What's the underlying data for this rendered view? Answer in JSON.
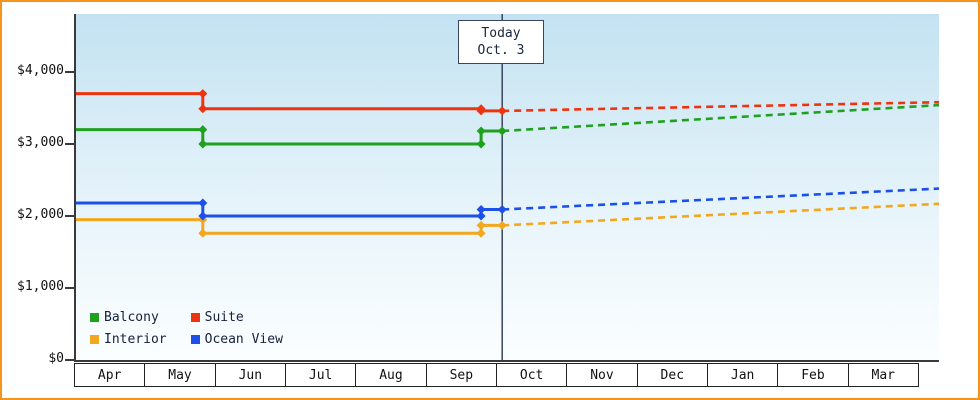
{
  "colors": {
    "page_border": "#f7941d",
    "axis": "#3a3a3a",
    "today_line": "#39455e",
    "plot_bg_top": "#c3e2f1",
    "plot_bg_bottom": "#fbfeff"
  },
  "chart_data": {
    "type": "line",
    "title": "",
    "xlabel": "",
    "ylabel": "",
    "ylim": [
      0,
      4800
    ],
    "grid": false,
    "legend_position": "bottom-left",
    "x_axis": {
      "months": [
        "Apr",
        "May",
        "Jun",
        "Jul",
        "Aug",
        "Sep",
        "Oct",
        "Nov",
        "Dec",
        "Jan",
        "Feb",
        "Mar"
      ]
    },
    "y_axis": {
      "ticks": [
        {
          "value": 4000,
          "label": "$4,000"
        },
        {
          "value": 3000,
          "label": "$3,000"
        },
        {
          "value": 2000,
          "label": "$2,000"
        },
        {
          "value": 1000,
          "label": "$1,000"
        },
        {
          "value": 0,
          "label": "$0"
        }
      ]
    },
    "today": {
      "line1": "Today",
      "line2": "Oct. 3",
      "x": 6.05
    },
    "series": [
      {
        "name": "Balcony",
        "color": "#1fa11f",
        "historical": [
          [
            0,
            3200
          ],
          [
            1.8,
            3200
          ],
          [
            1.8,
            3000
          ],
          [
            5.75,
            3000
          ],
          [
            5.75,
            3180
          ],
          [
            6.05,
            3180
          ]
        ],
        "forecast": [
          [
            6.05,
            3180
          ],
          [
            12.25,
            3540
          ]
        ],
        "markers": [
          [
            1.8,
            3200
          ],
          [
            1.8,
            3000
          ],
          [
            5.75,
            3000
          ],
          [
            5.75,
            3180
          ],
          [
            6.05,
            3180
          ]
        ]
      },
      {
        "name": "Suite",
        "color": "#ee3311",
        "historical": [
          [
            0,
            3700
          ],
          [
            1.8,
            3700
          ],
          [
            1.8,
            3490
          ],
          [
            5.75,
            3490
          ],
          [
            5.75,
            3460
          ],
          [
            6.05,
            3460
          ]
        ],
        "forecast": [
          [
            6.05,
            3460
          ],
          [
            12.25,
            3580
          ]
        ],
        "markers": [
          [
            1.8,
            3700
          ],
          [
            1.8,
            3490
          ],
          [
            5.75,
            3490
          ],
          [
            5.75,
            3460
          ],
          [
            6.05,
            3460
          ]
        ]
      },
      {
        "name": "Interior",
        "color": "#f2a71f",
        "historical": [
          [
            0,
            1950
          ],
          [
            1.8,
            1950
          ],
          [
            1.8,
            1760
          ],
          [
            5.75,
            1760
          ],
          [
            5.75,
            1870
          ],
          [
            6.05,
            1870
          ]
        ],
        "forecast": [
          [
            6.05,
            1870
          ],
          [
            12.25,
            2170
          ]
        ],
        "markers": [
          [
            1.8,
            1950
          ],
          [
            1.8,
            1760
          ],
          [
            5.75,
            1760
          ],
          [
            5.75,
            1870
          ],
          [
            6.05,
            1870
          ]
        ]
      },
      {
        "name": "Ocean View",
        "color": "#1c50e8",
        "historical": [
          [
            0,
            2180
          ],
          [
            1.8,
            2180
          ],
          [
            1.8,
            2000
          ],
          [
            5.75,
            2000
          ],
          [
            5.75,
            2090
          ],
          [
            6.05,
            2090
          ]
        ],
        "forecast": [
          [
            6.05,
            2090
          ],
          [
            12.25,
            2380
          ]
        ],
        "markers": [
          [
            1.8,
            2180
          ],
          [
            1.8,
            2000
          ],
          [
            5.75,
            2000
          ],
          [
            5.75,
            2090
          ],
          [
            6.05,
            2090
          ]
        ]
      }
    ]
  }
}
